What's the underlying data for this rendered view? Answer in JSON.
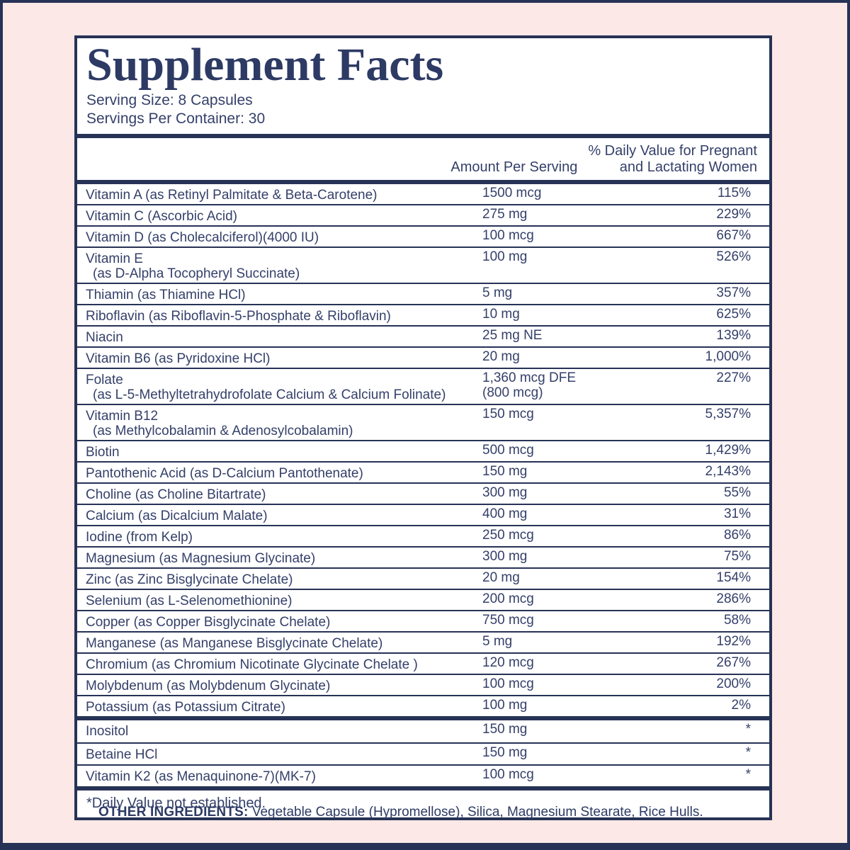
{
  "colors": {
    "background_pink": "#fce8e6",
    "frame_navy": "#273356",
    "panel_white": "#ffffff",
    "text_navy": "#35406a"
  },
  "title": "Supplement Facts",
  "serving": {
    "size": "Serving Size: 8 Capsules",
    "per_container": "Servings Per Container: 30"
  },
  "columns": {
    "amount": "Amount Per Serving",
    "dv_line1": "% Daily Value for Pregnant",
    "dv_line2": "and Lactating Women"
  },
  "nutrients": [
    {
      "name": "Vitamin A (as Retinyl Palmitate & Beta-Carotene)",
      "amount": "1500 mcg",
      "dv": "115%"
    },
    {
      "name": "Vitamin C (Ascorbic Acid)",
      "amount": "275 mg",
      "dv": "229%"
    },
    {
      "name": "Vitamin D (as Cholecalciferol)(4000 IU)",
      "amount": "100 mcg",
      "dv": "667%"
    },
    {
      "name": "Vitamin E",
      "name2": "(as D-Alpha Tocopheryl Succinate)",
      "amount": "100 mg",
      "dv": "526%"
    },
    {
      "name": "Thiamin (as Thiamine HCl)",
      "amount": "5 mg",
      "dv": "357%"
    },
    {
      "name": "Riboflavin (as Riboflavin-5-Phosphate & Riboflavin)",
      "amount": "10 mg",
      "dv": "625%"
    },
    {
      "name": "Niacin",
      "amount": "25 mg NE",
      "dv": "139%"
    },
    {
      "name": "Vitamin B6 (as Pyridoxine HCl)",
      "amount": "20 mg",
      "dv": "1,000%"
    },
    {
      "name": "Folate",
      "name2": "(as L-5-Methyltetrahydrofolate Calcium & Calcium Folinate)",
      "amount": "1,360 mcg DFE",
      "amount2": "(800 mcg)",
      "dv": "227%"
    },
    {
      "name": "Vitamin B12",
      "name2": "(as Methylcobalamin & Adenosylcobalamin)",
      "amount": "150 mcg",
      "dv": "5,357%"
    },
    {
      "name": "Biotin",
      "amount": "500 mcg",
      "dv": "1,429%"
    },
    {
      "name": "Pantothenic Acid (as D-Calcium Pantothenate)",
      "amount": "150 mg",
      "dv": "2,143%"
    },
    {
      "name": "Choline (as Choline Bitartrate)",
      "amount": "300 mg",
      "dv": "55%"
    },
    {
      "name": "Calcium (as Dicalcium Malate)",
      "amount": "400 mg",
      "dv": "31%"
    },
    {
      "name": "Iodine (from Kelp)",
      "amount": "250 mcg",
      "dv": "86%"
    },
    {
      "name": "Magnesium (as Magnesium Glycinate)",
      "amount": "300 mg",
      "dv": "75%"
    },
    {
      "name": "Zinc (as Zinc Bisglycinate Chelate)",
      "amount": "20 mg",
      "dv": "154%"
    },
    {
      "name": "Selenium (as L-Selenomethionine)",
      "amount": "200 mcg",
      "dv": "286%"
    },
    {
      "name": "Copper (as Copper Bisglycinate Chelate)",
      "amount": "750 mcg",
      "dv": "58%"
    },
    {
      "name": "Manganese (as Manganese Bisglycinate Chelate)",
      "amount": "5 mg",
      "dv": "192%"
    },
    {
      "name": "Chromium (as Chromium Nicotinate Glycinate Chelate )",
      "amount": "120 mcg",
      "dv": "267%"
    },
    {
      "name": "Molybdenum (as Molybdenum Glycinate)",
      "amount": "100 mcg",
      "dv": "200%"
    },
    {
      "name": "Potassium (as Potassium Citrate)",
      "amount": "100 mg",
      "dv": "2%"
    }
  ],
  "no_dv_nutrients": [
    {
      "name": "Inositol",
      "amount": "150 mg",
      "dv": "*"
    },
    {
      "name": "Betaine HCl",
      "amount": "150 mg",
      "dv": "*"
    },
    {
      "name": "Vitamin K2 (as Menaquinone-7)(MK-7)",
      "amount": "100 mcg",
      "dv": "*"
    }
  ],
  "footnote": "*Daily Value not established.",
  "other_ingredients": {
    "label": "OTHER INGREDIENTS:",
    "text": " Vegetable Capsule (Hypromellose), Silica, Magnesium Stearate, Rice Hulls."
  }
}
